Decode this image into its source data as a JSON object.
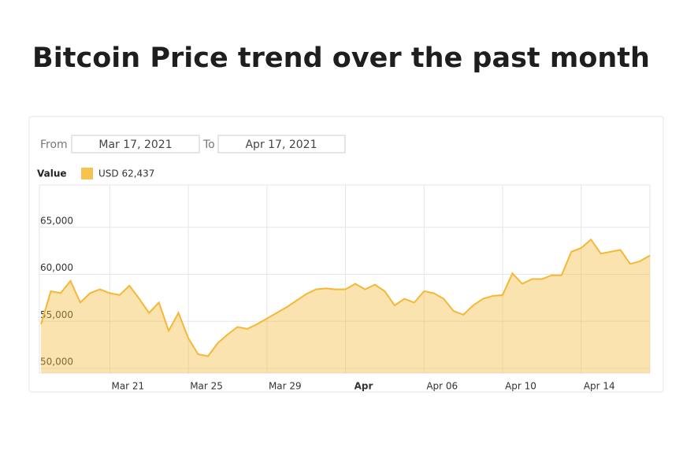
{
  "title": "Bitcoin Price trend over the past month",
  "range": {
    "from_label": "From",
    "from": "Mar 17, 2021",
    "to_label": "To",
    "to": "Apr 17, 2021"
  },
  "legend": {
    "label": "Value",
    "series_value": "USD 62,437"
  },
  "chart_data": {
    "type": "area",
    "color": "#f5b836",
    "grid": true,
    "x": [
      "2021-03-17T12:00",
      "2021-03-18T00:00",
      "2021-03-18T12:00",
      "2021-03-19T00:00",
      "2021-03-19T12:00",
      "2021-03-20T00:00",
      "2021-03-20T12:00",
      "2021-03-21T00:00",
      "2021-03-21T12:00",
      "2021-03-22T00:00",
      "2021-03-22T12:00",
      "2021-03-23T00:00",
      "2021-03-23T12:00",
      "2021-03-24T00:00",
      "2021-03-24T12:00",
      "2021-03-25T00:00",
      "2021-03-25T12:00",
      "2021-03-26T00:00",
      "2021-03-26T12:00",
      "2021-03-27T00:00",
      "2021-03-27T12:00",
      "2021-03-28T00:00",
      "2021-03-28T12:00",
      "2021-03-29T00:00",
      "2021-03-29T12:00",
      "2021-03-30T00:00",
      "2021-03-30T12:00",
      "2021-03-31T00:00",
      "2021-03-31T12:00",
      "2021-04-01T00:00",
      "2021-04-01T12:00",
      "2021-04-02T00:00",
      "2021-04-02T12:00",
      "2021-04-03T00:00",
      "2021-04-03T12:00",
      "2021-04-04T00:00",
      "2021-04-04T12:00",
      "2021-04-05T00:00",
      "2021-04-05T12:00",
      "2021-04-06T00:00",
      "2021-04-06T12:00",
      "2021-04-07T00:00",
      "2021-04-07T12:00",
      "2021-04-08T00:00",
      "2021-04-08T12:00",
      "2021-04-09T00:00",
      "2021-04-09T12:00",
      "2021-04-10T00:00",
      "2021-04-10T12:00",
      "2021-04-11T00:00",
      "2021-04-11T12:00",
      "2021-04-12T00:00",
      "2021-04-12T12:00",
      "2021-04-13T00:00",
      "2021-04-13T12:00",
      "2021-04-14T00:00",
      "2021-04-14T12:00",
      "2021-04-15T00:00",
      "2021-04-15T12:00",
      "2021-04-16T00:00",
      "2021-04-16T12:00",
      "2021-04-17T00:00",
      "2021-04-17T12:00"
    ],
    "values": [
      54700,
      58200,
      58000,
      59300,
      57000,
      58000,
      58400,
      58000,
      57800,
      58800,
      57400,
      55900,
      57000,
      54000,
      55900,
      53200,
      51500,
      51300,
      52700,
      53600,
      54400,
      54200,
      54700,
      55300,
      55900,
      56500,
      57200,
      57900,
      58400,
      58500,
      58400,
      58400,
      59000,
      58400,
      58900,
      58200,
      56700,
      57400,
      57000,
      58200,
      58000,
      57400,
      56100,
      55700,
      56700,
      57400,
      57700,
      57800,
      60100,
      59000,
      59500,
      59500,
      59900,
      59900,
      62400,
      62800,
      63700,
      62200,
      62400,
      62600,
      61100,
      61400,
      62000
    ],
    "xlim": [
      "2021-03-17T10:00",
      "2021-04-17T12:00"
    ],
    "xticks": [
      {
        "value": "2021-03-21T00:00",
        "label": "Mar 21"
      },
      {
        "value": "2021-03-25T00:00",
        "label": "Mar 25"
      },
      {
        "value": "2021-03-29T00:00",
        "label": "Mar 29"
      },
      {
        "value": "2021-04-02T00:00",
        "label": "Apr"
      },
      {
        "value": "2021-04-06T00:00",
        "label": "Apr 06"
      },
      {
        "value": "2021-04-10T00:00",
        "label": "Apr 10"
      },
      {
        "value": "2021-04-14T00:00",
        "label": "Apr 14"
      }
    ],
    "ylim": [
      49500,
      69500
    ],
    "yticks": [
      {
        "value": 50000,
        "label": "50,000"
      },
      {
        "value": 55000,
        "label": "55,000"
      },
      {
        "value": 60000,
        "label": "60,000"
      },
      {
        "value": 65000,
        "label": "65,000"
      }
    ]
  }
}
